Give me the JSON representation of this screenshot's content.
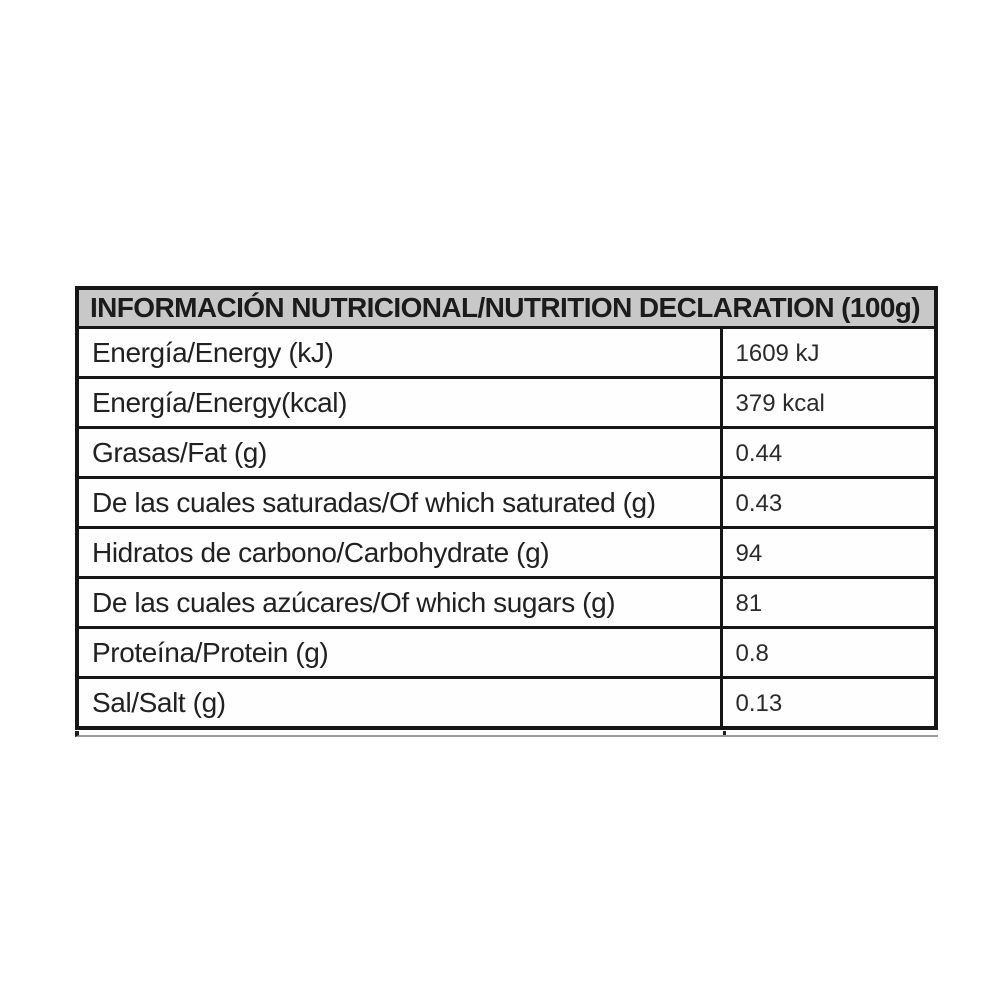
{
  "page": {
    "background": "#ffffff"
  },
  "table": {
    "header": "INFORMACIÓN NUTRICIONAL/NUTRITION DECLARATION (100g)",
    "header_bg": "#c8c8c8",
    "border_color": "#161616",
    "rows": [
      {
        "label": "Energía/Energy (kJ)",
        "value": "1609 kJ"
      },
      {
        "label": "Energía/Energy(kcal)",
        "value": "379 kcal"
      },
      {
        "label": "Grasas/Fat (g)",
        "value": "0.44"
      },
      {
        "label": "De las cuales saturadas/Of which saturated (g)",
        "value": "0.43"
      },
      {
        "label": "Hidratos de carbono/Carbohydrate (g)",
        "value": "94"
      },
      {
        "label": "De las cuales azúcares/Of which sugars (g)",
        "value": "81"
      },
      {
        "label": "Proteína/Protein (g)",
        "value": "0.8"
      },
      {
        "label": "Sal/Salt (g)",
        "value": "0.13"
      }
    ]
  }
}
